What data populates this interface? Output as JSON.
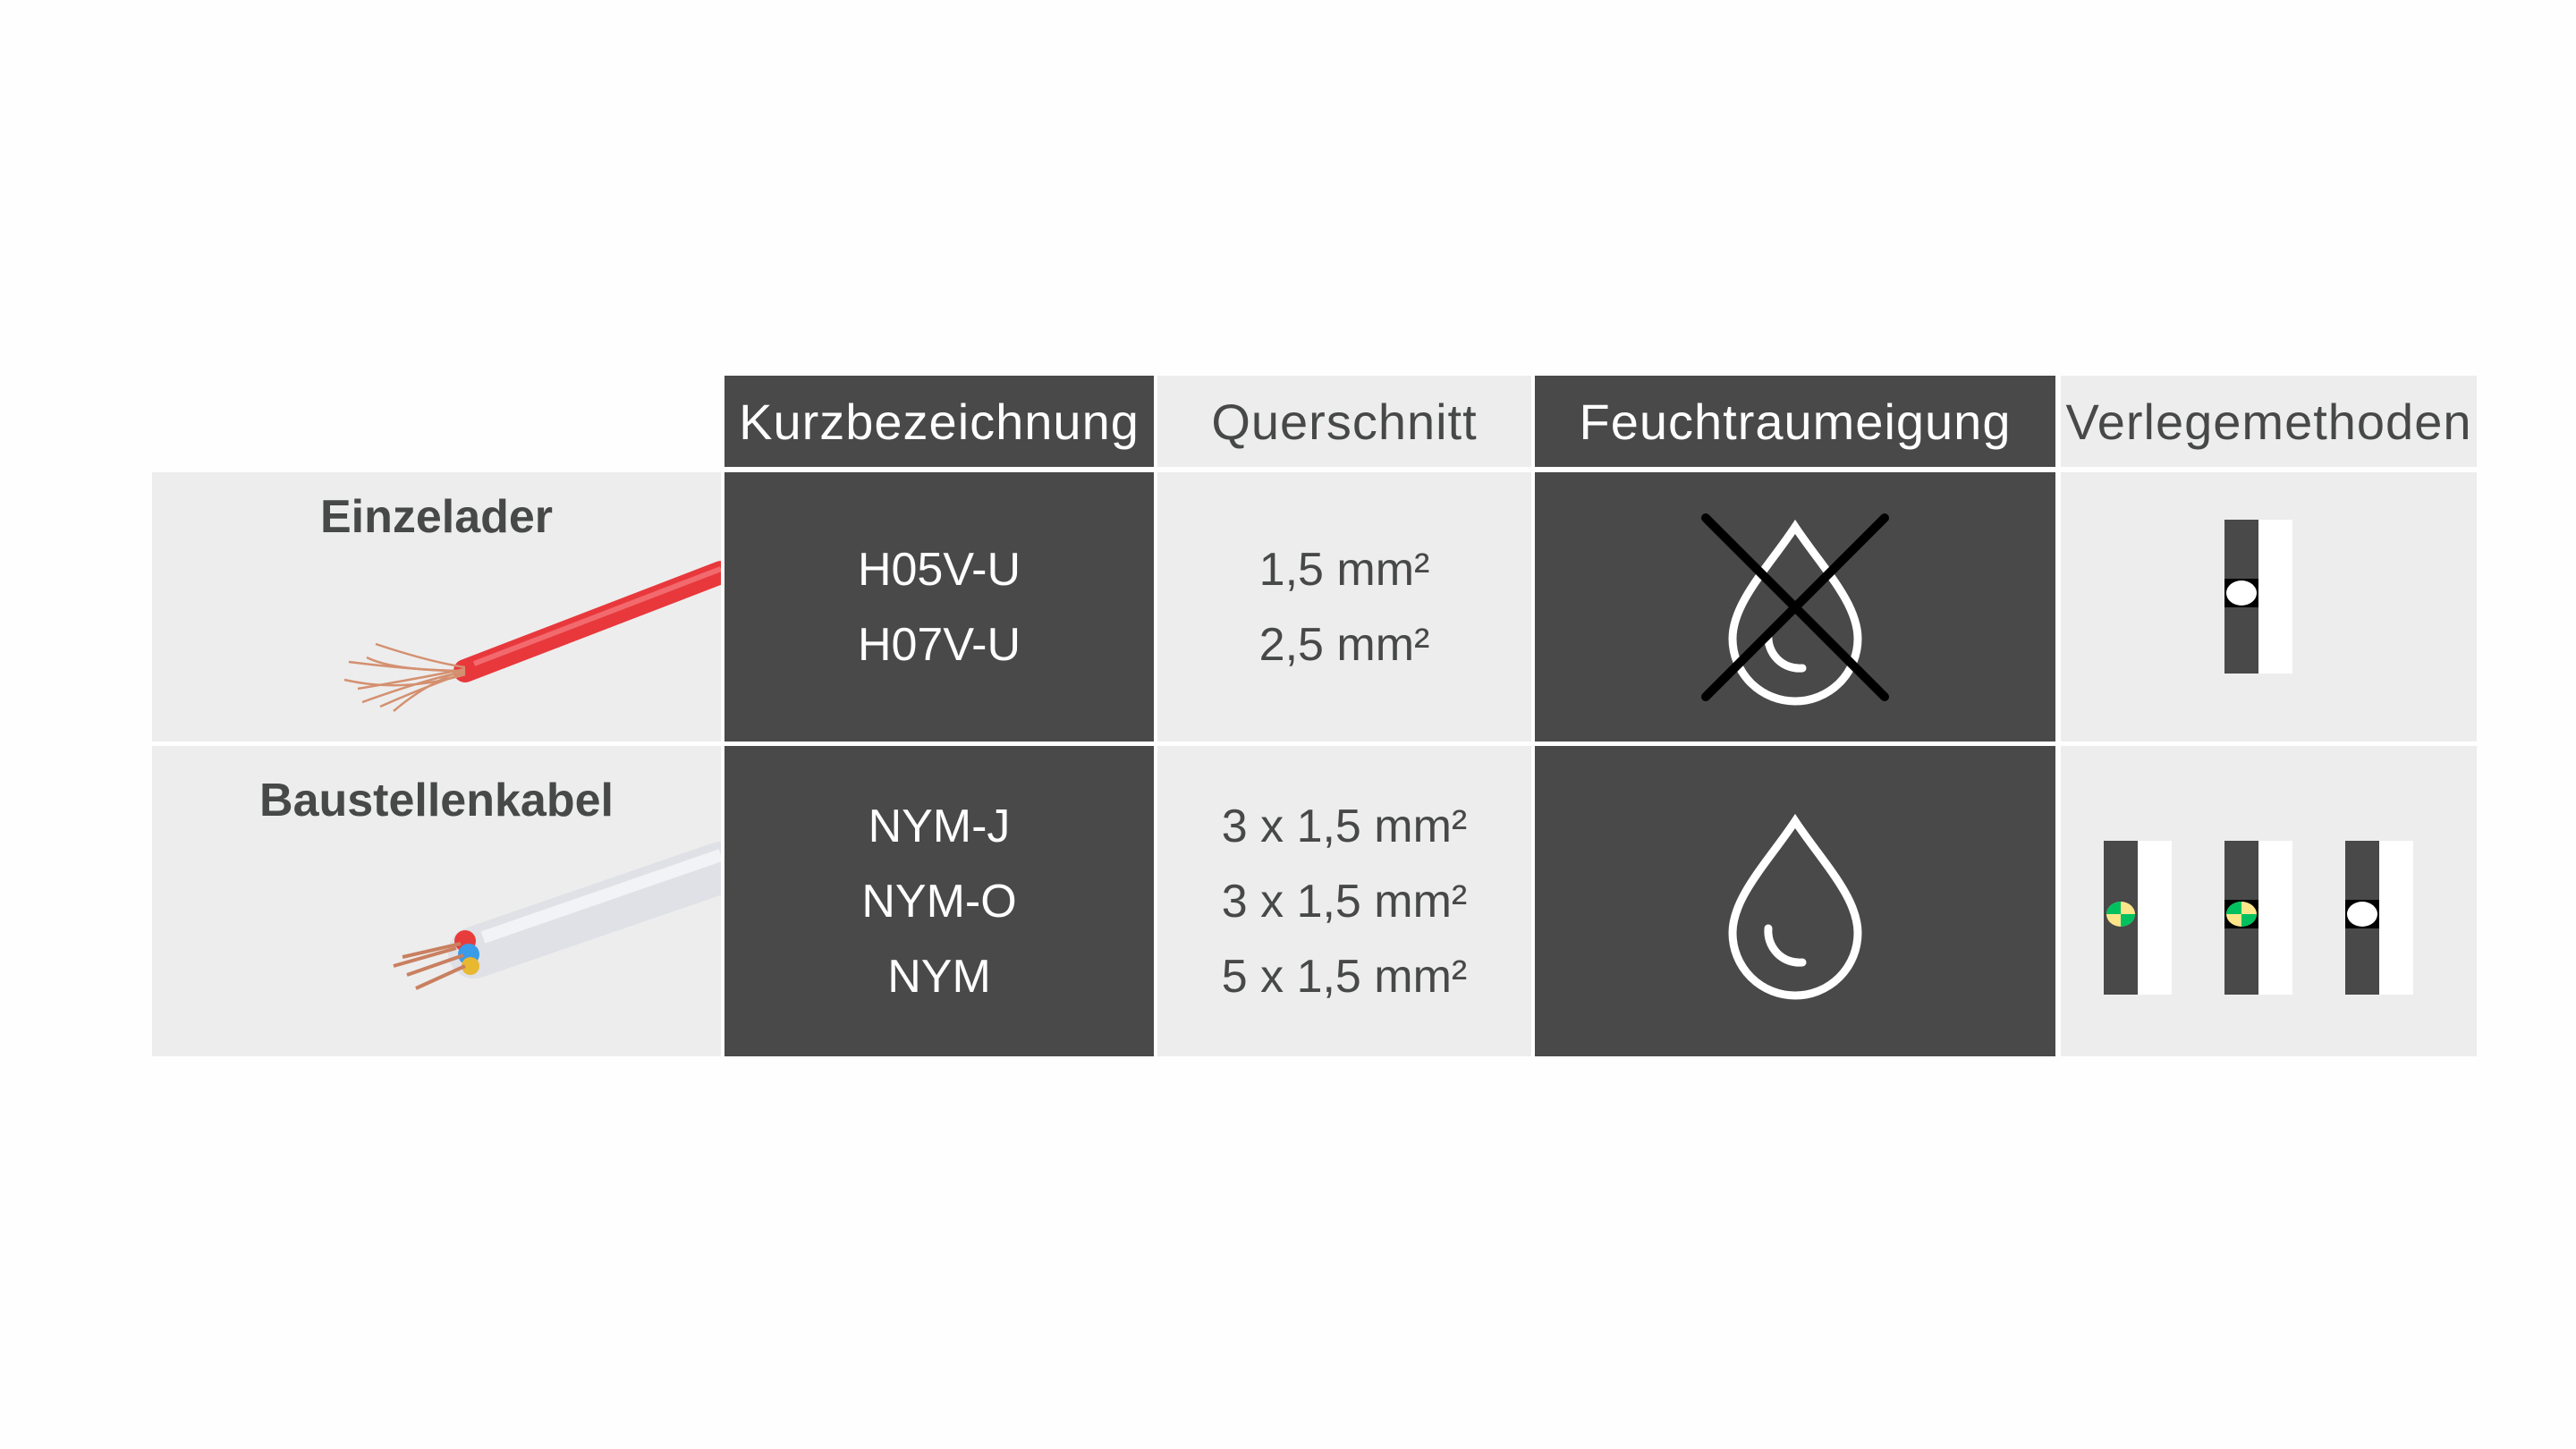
{
  "headers": {
    "kurzbezeichnung": "Kurzbezeichnung",
    "querschnitt": "Querschnitt",
    "feuchtraumeignung": "Feuchtraumeigung",
    "verlegemethoden": "Verlegemethoden"
  },
  "rows": [
    {
      "label": "Einzelader",
      "cable_image": "red-single-core-wire",
      "codes": [
        "H05V-U",
        "H07V-U"
      ],
      "cross_sections": [
        "1,5 mm²",
        "2,5 mm²"
      ],
      "damp_room_icon": "water-drop-crossed-icon",
      "damp_room_suitable": false,
      "installation_icons": [
        "installation-method-white-dot"
      ]
    },
    {
      "label": "Baustellenkabel",
      "cable_image": "white-multi-core-cable",
      "codes": [
        "NYM-J",
        "NYM-O",
        "NYM"
      ],
      "cross_sections": [
        "3 x 1,5 mm²",
        "3 x 1,5 mm²",
        "5 x 1,5 mm²"
      ],
      "damp_room_icon": "water-drop-icon",
      "damp_room_suitable": true,
      "installation_icons": [
        "installation-method-green-yellow-dot",
        "installation-method-green-yellow-dot-boxed",
        "installation-method-white-dot"
      ]
    }
  ],
  "colors": {
    "dark_cell": "#484948",
    "light_cell": "#ededed",
    "text_dark": "#474848",
    "earth_green": "#00c060",
    "earth_yellow": "#fde68a"
  }
}
